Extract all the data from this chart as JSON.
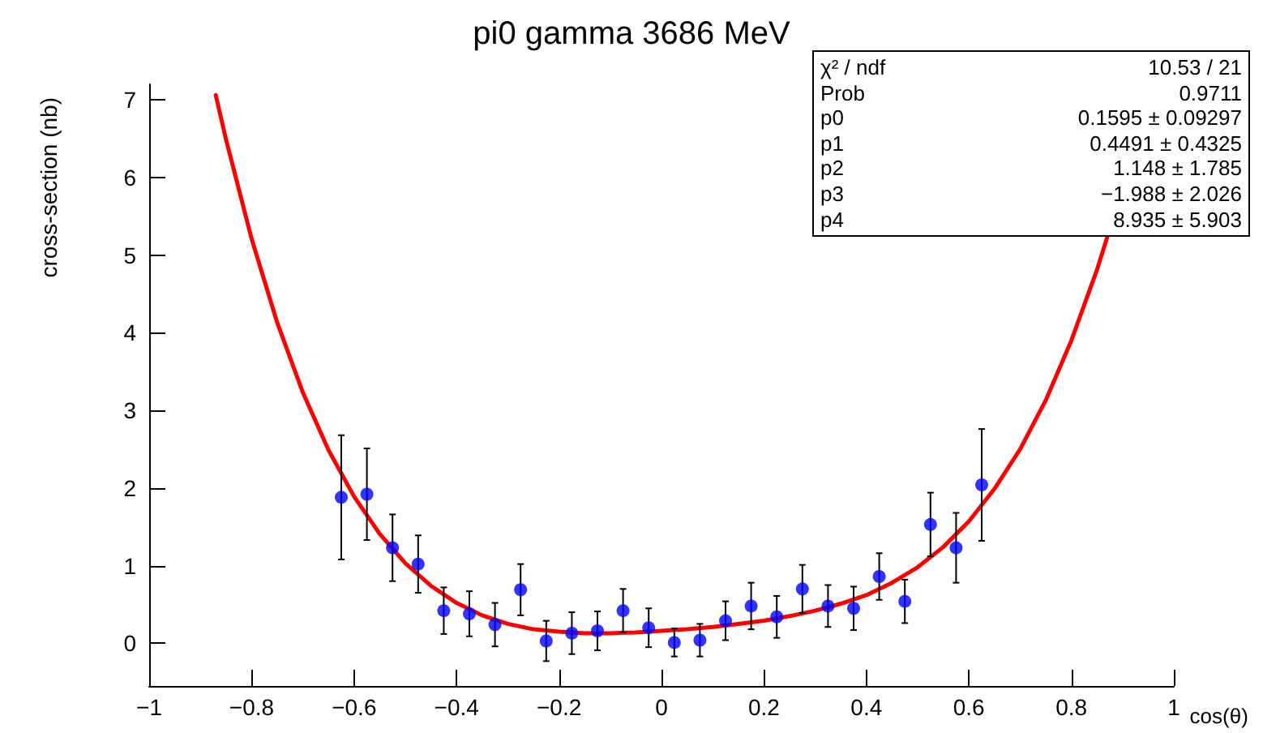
{
  "chart_data": {
    "type": "scatter",
    "title": "pi0 gamma 3686 MeV",
    "xlabel": "cos(θ)",
    "ylabel": "cross-section (nb)",
    "annotations": [
      "χ² / ndf",
      "10.53 / 21",
      "Prob",
      "0.9711",
      "p0",
      "0.1595 ± 0.09297",
      "p1",
      "0.4491 ± 0.4325",
      "p2",
      "1.148 ± 1.785",
      "p3",
      "−1.988 ± 2.026",
      "p4",
      "8.935 ± 5.903"
    ],
    "xlim": [
      -1,
      1
    ],
    "ylim": [
      -0.55,
      7.2
    ],
    "xticks": [
      {
        "value": -1,
        "label": "−1"
      },
      {
        "value": -0.8,
        "label": "−0.8"
      },
      {
        "value": -0.6,
        "label": "−0.6"
      },
      {
        "value": -0.4,
        "label": "−0.4"
      },
      {
        "value": -0.2,
        "label": "−0.2"
      },
      0,
      0.2,
      0.4,
      0.6,
      0.8,
      1
    ],
    "yticks": [
      0,
      1,
      2,
      3,
      4,
      5,
      6,
      7
    ],
    "grid": false,
    "series": [
      {
        "color": "#0000ff",
        "marker": "circle",
        "x": [
          -0.625,
          -0.575,
          -0.525,
          -0.475,
          -0.425,
          -0.375,
          -0.325,
          -0.275,
          -0.225,
          -0.175,
          -0.125,
          -0.075,
          -0.025,
          0.025,
          0.075,
          0.125,
          0.175,
          0.225,
          0.275,
          0.325,
          0.375,
          0.425,
          0.475,
          0.525,
          0.575,
          0.625
        ],
        "values": [
          1.88,
          1.92,
          1.23,
          1.02,
          0.42,
          0.38,
          0.24,
          0.69,
          0.03,
          0.13,
          0.16,
          0.42,
          0.2,
          0.01,
          0.04,
          0.29,
          0.48,
          0.34,
          0.7,
          0.48,
          0.45,
          0.86,
          0.54,
          1.53,
          1.23,
          2.04
        ],
        "errors": [
          0.8,
          0.59,
          0.43,
          0.37,
          0.3,
          0.29,
          0.28,
          0.33,
          0.26,
          0.27,
          0.25,
          0.28,
          0.25,
          0.18,
          0.21,
          0.25,
          0.3,
          0.27,
          0.31,
          0.27,
          0.28,
          0.3,
          0.28,
          0.41,
          0.45,
          0.72
        ]
      },
      {
        "type": "line",
        "color": "#ff0000",
        "marker": "none",
        "line_style": "solid",
        "x": [
          -0.87,
          -0.85,
          -0.8,
          -0.75,
          -0.7,
          -0.65,
          -0.6,
          -0.55,
          -0.5,
          -0.45,
          -0.4,
          -0.35,
          -0.3,
          -0.25,
          -0.2,
          -0.15,
          -0.1,
          -0.05,
          0,
          0.05,
          0.1,
          0.15,
          0.2,
          0.25,
          0.3,
          0.35,
          0.4,
          0.45,
          0.5,
          0.55,
          0.6,
          0.65,
          0.7,
          0.75,
          0.8,
          0.85,
          0.87
        ],
        "values": [
          7.06,
          6.49,
          5.21,
          4.13,
          3.23,
          2.49,
          1.89,
          1.41,
          1.03,
          0.74,
          0.52,
          0.36,
          0.25,
          0.18,
          0.15,
          0.13,
          0.13,
          0.14,
          0.16,
          0.18,
          0.21,
          0.25,
          0.29,
          0.35,
          0.42,
          0.51,
          0.62,
          0.78,
          0.98,
          1.24,
          1.57,
          1.99,
          2.5,
          3.13,
          3.9,
          4.81,
          5.23
        ]
      }
    ]
  }
}
